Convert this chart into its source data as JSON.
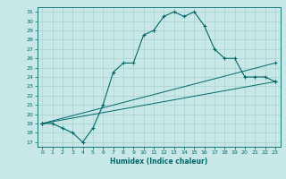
{
  "xlabel": "Humidex (Indice chaleur)",
  "ylabel": "",
  "background_color": "#c8e8e8",
  "grid_color": "#a8d0d0",
  "line_color": "#006868",
  "xlim": [
    -0.5,
    23.5
  ],
  "ylim": [
    16.5,
    31.5
  ],
  "yticks": [
    17,
    18,
    19,
    20,
    21,
    22,
    23,
    24,
    25,
    26,
    27,
    28,
    29,
    30,
    31
  ],
  "xticks": [
    0,
    1,
    2,
    3,
    4,
    5,
    6,
    7,
    8,
    9,
    10,
    11,
    12,
    13,
    14,
    15,
    16,
    17,
    18,
    19,
    20,
    21,
    22,
    23
  ],
  "curve1_x": [
    0,
    1,
    2,
    3,
    4,
    5,
    6,
    7,
    8,
    9,
    10,
    11,
    12,
    13,
    14,
    15,
    16,
    17,
    18,
    19,
    20,
    21,
    22,
    23
  ],
  "curve1_y": [
    19.0,
    19.0,
    18.5,
    18.0,
    17.0,
    18.5,
    21.0,
    24.5,
    25.5,
    25.5,
    28.5,
    29.0,
    30.5,
    31.0,
    30.5,
    31.0,
    29.5,
    27.0,
    26.0,
    26.0,
    24.0,
    24.0,
    24.0,
    23.5
  ],
  "curve2_x": [
    0,
    23
  ],
  "curve2_y": [
    19.0,
    25.5
  ],
  "curve3_x": [
    0,
    23
  ],
  "curve3_y": [
    19.0,
    23.5
  ]
}
